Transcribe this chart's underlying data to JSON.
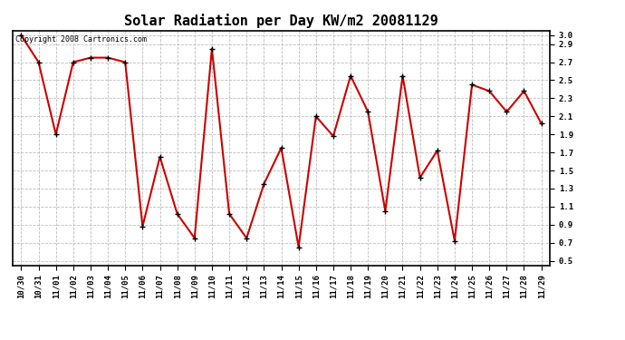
{
  "title": "Solar Radiation per Day KW/m2 20081129",
  "copyright_text": "Copyright 2008 Cartronics.com",
  "dates": [
    "10/30",
    "10/31",
    "11/01",
    "11/02",
    "11/03",
    "11/04",
    "11/05",
    "11/06",
    "11/07",
    "11/08",
    "11/09",
    "11/10",
    "11/11",
    "11/12",
    "11/13",
    "11/14",
    "11/15",
    "11/16",
    "11/17",
    "11/18",
    "11/19",
    "11/20",
    "11/21",
    "11/22",
    "11/23",
    "11/24",
    "11/25",
    "11/26",
    "11/27",
    "11/28",
    "11/29"
  ],
  "values": [
    3.0,
    2.7,
    1.9,
    2.7,
    2.75,
    2.75,
    2.7,
    0.88,
    1.65,
    1.02,
    0.75,
    2.85,
    1.02,
    0.75,
    1.35,
    1.75,
    0.65,
    2.1,
    1.88,
    2.55,
    2.15,
    1.05,
    2.55,
    1.42,
    1.72,
    0.72,
    2.45,
    2.38,
    2.15,
    2.38,
    2.02
  ],
  "line_color": "#cc0000",
  "marker_color": "#000000",
  "bg_color": "#ffffff",
  "plot_bg_color": "#ffffff",
  "ylim_min": 0.45,
  "ylim_max": 3.05,
  "yticks": [
    0.5,
    0.7,
    0.9,
    1.1,
    1.3,
    1.5,
    1.7,
    1.9,
    2.1,
    2.3,
    2.5,
    2.7,
    2.9,
    3.0
  ],
  "grid_color": "#bbbbbb",
  "title_fontsize": 11,
  "tick_fontsize": 6.5,
  "copyright_fontsize": 6.0,
  "linewidth": 1.5,
  "marker_size": 10
}
